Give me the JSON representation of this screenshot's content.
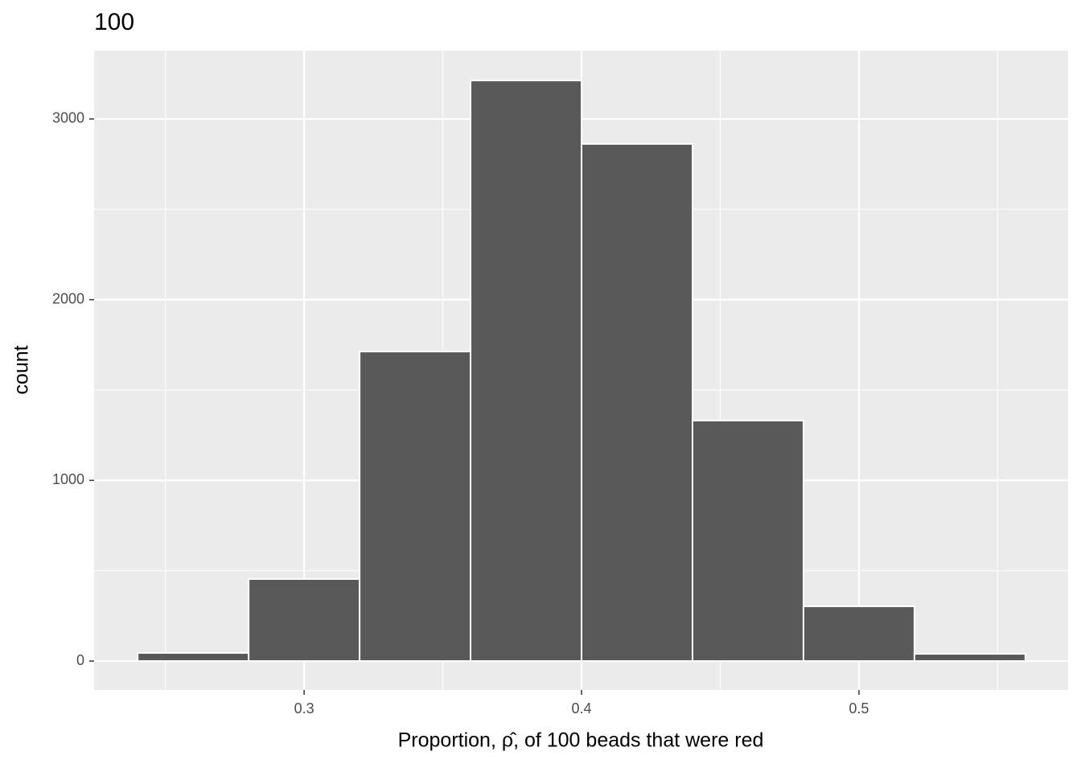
{
  "chart_data": {
    "type": "histogram",
    "title": "100",
    "x_label": "Proportion, ρ̂, of 100 beads that were red",
    "y_label": "count",
    "bins": [
      0.24,
      0.28,
      0.32,
      0.36,
      0.4,
      0.44,
      0.48,
      0.52,
      0.56
    ],
    "values": [
      45,
      454,
      1713,
      3213,
      2862,
      1331,
      303,
      40
    ],
    "color": "#595959",
    "xlim": [
      0.2243,
      0.5754
    ],
    "xticks": [
      0.3,
      0.4,
      0.5
    ],
    "xminor": [
      0.25,
      0.35,
      0.45,
      0.55
    ],
    "ylim": [
      -160,
      3378
    ],
    "yticks": [
      0,
      1000,
      2000,
      3000
    ],
    "yminor": [
      500,
      1500,
      2500
    ],
    "grid": true
  }
}
